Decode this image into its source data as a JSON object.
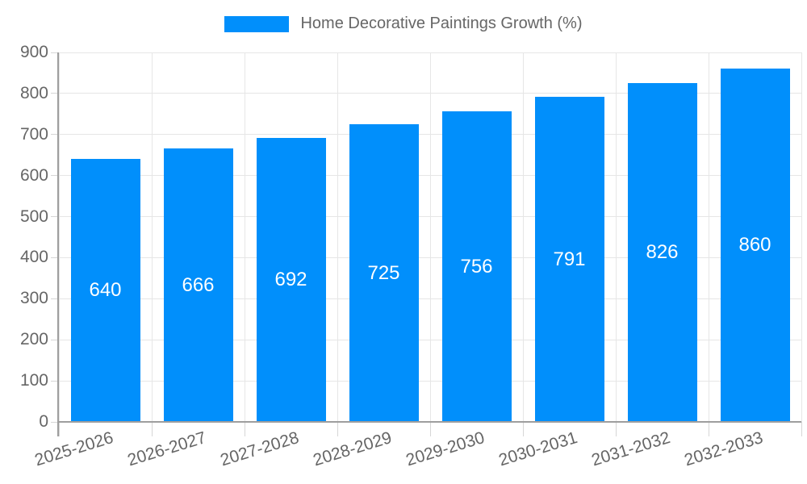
{
  "legend": {
    "label": "Home Decorative Paintings Growth (%)"
  },
  "chart_data": {
    "type": "bar",
    "title": "",
    "series_name": "Home Decorative Paintings Growth (%)",
    "categories": [
      "2025-2026",
      "2026-2027",
      "2027-2028",
      "2028-2029",
      "2029-2030",
      "2030-2031",
      "2031-2032",
      "2032-2033"
    ],
    "values": [
      640,
      666,
      692,
      725,
      756,
      791,
      826,
      860
    ],
    "xlabel": "",
    "ylabel": "",
    "ylim": [
      0,
      900
    ],
    "y_ticks": [
      0,
      100,
      200,
      300,
      400,
      500,
      600,
      700,
      800,
      900
    ],
    "grid": true,
    "legend_position": "top",
    "data_labels_position": "inside-center",
    "colors": {
      "bar": "#018FFB",
      "bar_label": "#ffffff",
      "axis_text": "#666666",
      "legend_text": "#666666",
      "grid": "#e6e6e6",
      "tick": "#d6d6d6",
      "axis_line": "#9e9e9e",
      "background": "#ffffff"
    }
  }
}
